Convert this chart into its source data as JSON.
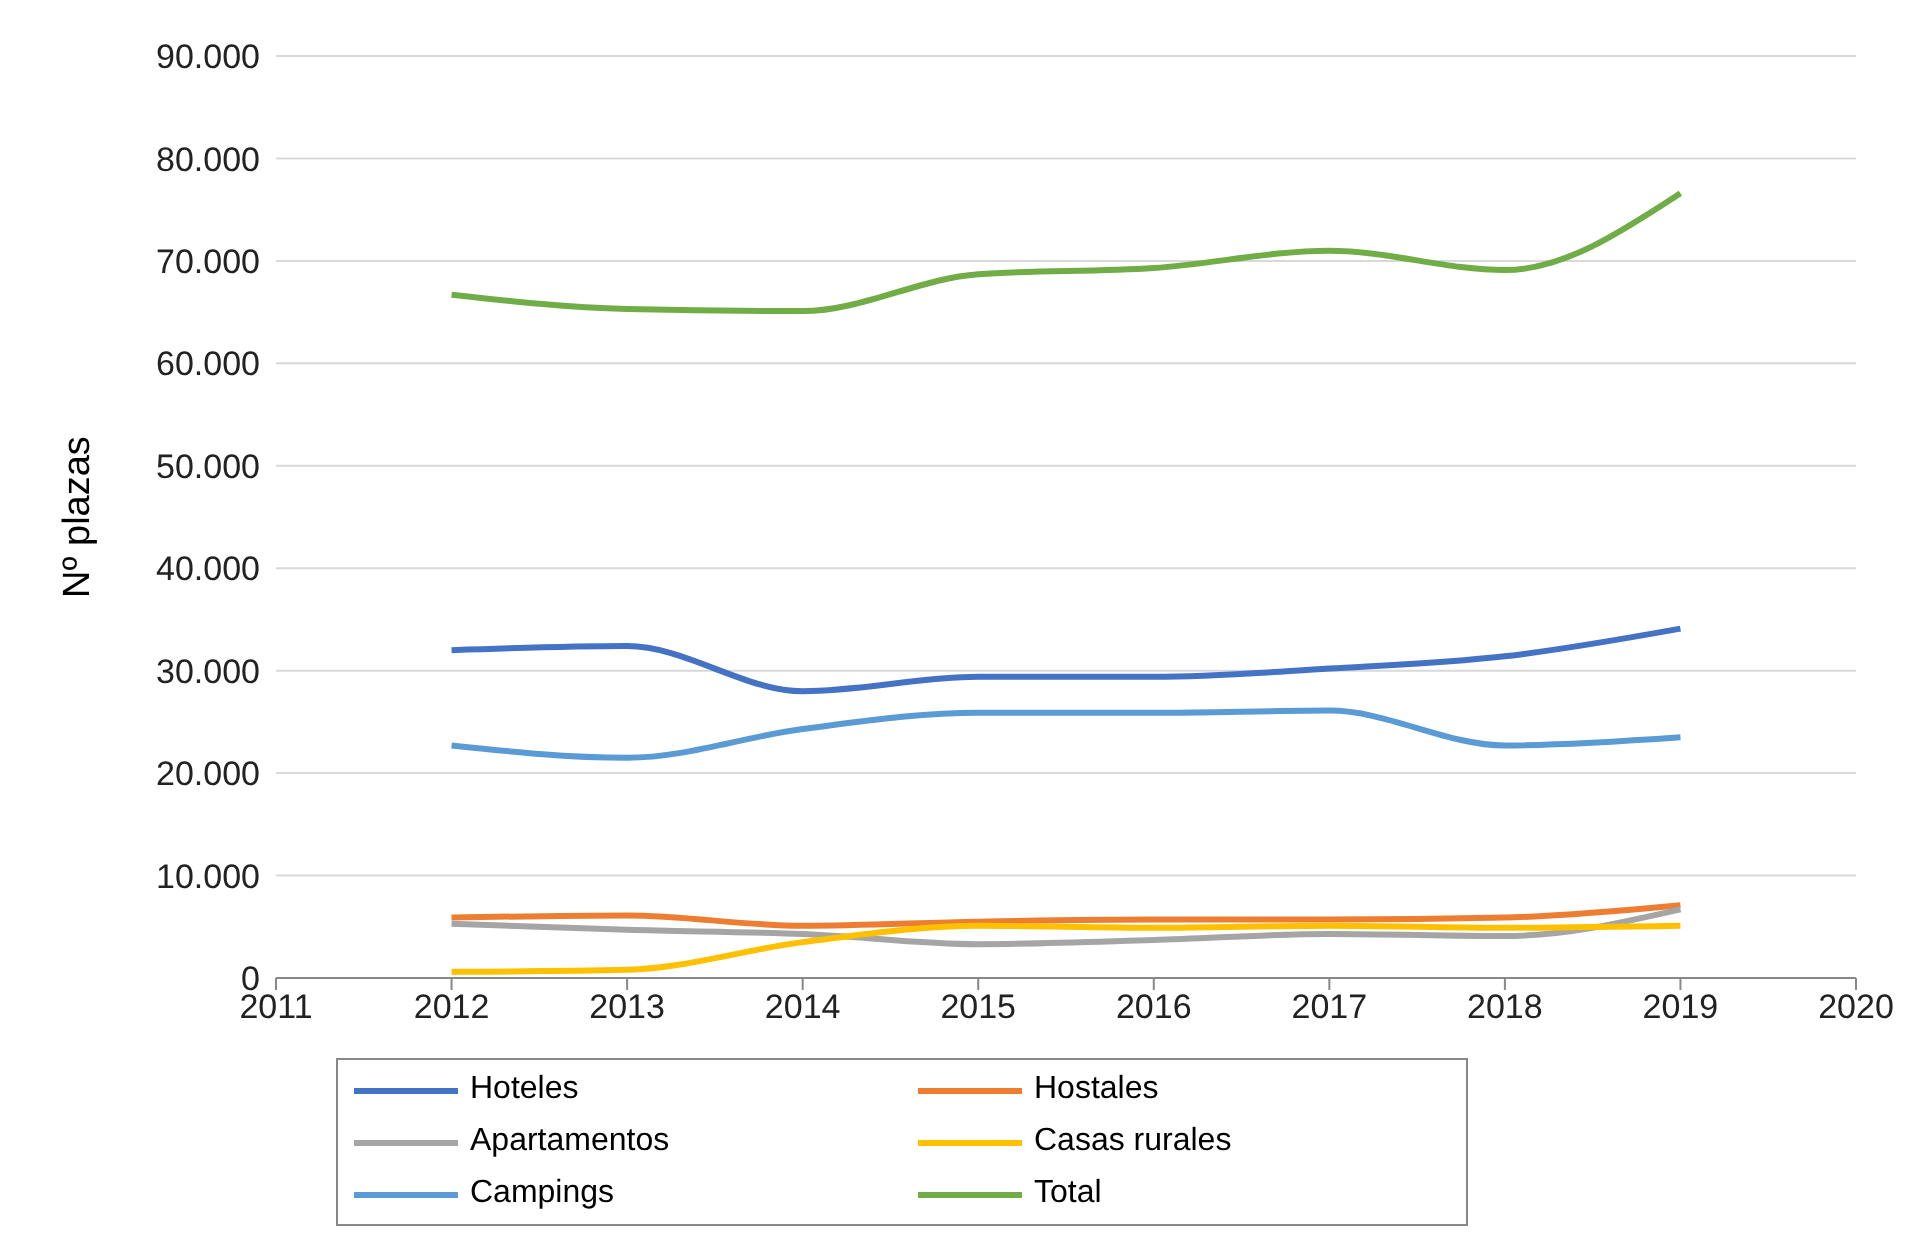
{
  "chart_data": {
    "type": "line",
    "ylabel": "Nº plazas",
    "x": [
      2012,
      2013,
      2014,
      2015,
      2016,
      2017,
      2018,
      2019
    ],
    "xlim": [
      2011,
      2020
    ],
    "xticks": [
      2011,
      2012,
      2013,
      2014,
      2015,
      2016,
      2017,
      2018,
      2019,
      2020
    ],
    "ylim": [
      0,
      90000
    ],
    "yticks": [
      0,
      {
        "value": 10000,
        "label": "10.000"
      },
      {
        "value": 20000,
        "label": "20.000"
      },
      {
        "value": 30000,
        "label": "30.000"
      },
      {
        "value": 40000,
        "label": "40.000"
      },
      {
        "value": 50000,
        "label": "50.000"
      },
      {
        "value": 60000,
        "label": "60.000"
      },
      {
        "value": 70000,
        "label": "70.000"
      },
      {
        "value": 80000,
        "label": "80.000"
      },
      {
        "value": 90000,
        "label": "90.000"
      }
    ],
    "grid": "y",
    "legend": "bottom",
    "marker": "none",
    "line_style": "solid",
    "series": [
      {
        "name": "Hoteles",
        "color": "#4472c4",
        "values": [
          32000,
          32400,
          28000,
          29400,
          29400,
          30200,
          31400,
          34100
        ]
      },
      {
        "name": "Hostales",
        "color": "#ed7d31",
        "values": [
          5900,
          6100,
          5100,
          5500,
          5700,
          5700,
          5900,
          7100
        ]
      },
      {
        "name": "Apartamentos",
        "color": "#a5a5a5",
        "values": [
          5300,
          4700,
          4300,
          3300,
          3700,
          4300,
          4100,
          6700
        ]
      },
      {
        "name": "Casas rurales",
        "color": "#ffc000",
        "values": [
          600,
          800,
          3500,
          5100,
          4900,
          5100,
          4900,
          5100
        ]
      },
      {
        "name": "Campings",
        "color": "#5b9bd5",
        "values": [
          22700,
          21500,
          24300,
          25900,
          25900,
          26100,
          22700,
          23500
        ]
      },
      {
        "name": "Total",
        "color": "#70ad47",
        "values": [
          66700,
          65300,
          65100,
          68700,
          69300,
          71000,
          69100,
          76600
        ]
      }
    ]
  }
}
